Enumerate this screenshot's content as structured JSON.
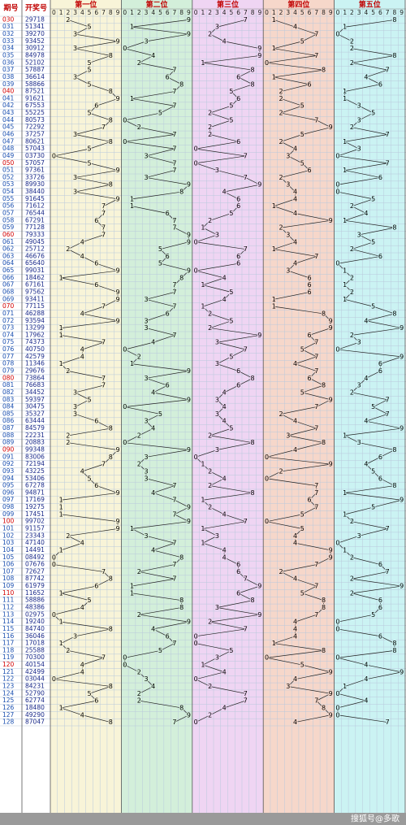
{
  "header": {
    "period": "期号",
    "number": "开奖号",
    "positions": [
      "第一位",
      "第二位",
      "第三位",
      "第四位",
      "第五位"
    ],
    "digits": [
      0,
      1,
      2,
      3,
      4,
      5,
      6,
      7,
      8,
      9
    ]
  },
  "periods": [
    "030",
    "031",
    "032",
    "033",
    "034",
    "035",
    "036",
    "037",
    "038",
    "039",
    "040",
    "041",
    "042",
    "043",
    "044",
    "045",
    "046",
    "047",
    "048",
    "049",
    "050",
    "051",
    "052",
    "053",
    "054",
    "055",
    "056",
    "057",
    "058",
    "059",
    "060",
    "061",
    "062",
    "063",
    "064",
    "065",
    "066",
    "067",
    "068",
    "069",
    "070",
    "071",
    "072",
    "073",
    "074",
    "075",
    "076",
    "077",
    "078",
    "079",
    "080",
    "081",
    "082",
    "083",
    "084",
    "085",
    "086",
    "087",
    "088",
    "089",
    "090",
    "091",
    "092",
    "093",
    "094",
    "095",
    "096",
    "097",
    "098",
    "099",
    "100",
    "101",
    "102",
    "103",
    "104",
    "105",
    "106",
    "107",
    "108",
    "109",
    "110",
    "111",
    "112",
    "113",
    "114",
    "115",
    "116",
    "117",
    "118",
    "119",
    "120",
    "121",
    "122",
    "123",
    "124",
    "125",
    "126",
    "127",
    "128"
  ],
  "draws": [
    [
      2,
      9,
      7,
      1,
      8
    ],
    [
      5,
      1,
      3,
      4,
      1
    ],
    [
      3,
      9,
      2,
      7,
      0
    ],
    [
      9,
      3,
      4,
      5,
      2
    ],
    [
      3,
      0,
      9,
      1,
      2
    ],
    [
      8,
      4,
      9,
      7,
      8
    ],
    [
      5,
      2,
      1,
      0,
      2
    ],
    [
      5,
      7,
      8,
      8,
      7
    ],
    [
      3,
      6,
      6,
      1,
      4
    ],
    [
      5,
      8,
      8,
      6,
      6
    ],
    [
      8,
      7,
      5,
      2,
      1
    ],
    [
      9,
      1,
      6,
      2,
      1
    ],
    [
      6,
      7,
      5,
      5,
      3
    ],
    [
      5,
      5,
      2,
      2,
      5
    ],
    [
      8,
      0,
      5,
      7,
      3
    ],
    [
      7,
      2,
      2,
      9,
      2
    ],
    [
      3,
      7,
      2,
      5,
      7
    ],
    [
      8,
      0,
      6,
      2,
      1
    ],
    [
      5,
      7,
      0,
      4,
      3
    ],
    [
      0,
      3,
      7,
      3,
      0
    ],
    [
      5,
      7,
      0,
      5,
      7
    ],
    [
      9,
      7,
      3,
      6,
      1
    ],
    [
      3,
      3,
      7,
      2,
      6
    ],
    [
      8,
      9,
      9,
      3,
      0
    ],
    [
      3,
      8,
      4,
      4,
      0
    ],
    [
      9,
      1,
      6,
      4,
      5
    ],
    [
      7,
      1,
      6,
      1,
      2
    ],
    [
      7,
      6,
      5,
      4,
      4
    ],
    [
      6,
      7,
      2,
      9,
      1
    ],
    [
      7,
      7,
      1,
      2,
      8
    ],
    [
      7,
      9,
      3,
      3,
      3
    ],
    [
      4,
      9,
      0,
      4,
      5
    ],
    [
      2,
      5,
      7,
      1,
      2
    ],
    [
      4,
      6,
      6,
      7,
      6
    ],
    [
      6,
      5,
      6,
      4,
      0
    ],
    [
      9,
      9,
      0,
      3,
      1
    ],
    [
      1,
      8,
      4,
      6,
      2
    ],
    [
      6,
      7,
      1,
      6,
      1
    ],
    [
      9,
      7,
      5,
      6,
      2
    ],
    [
      9,
      3,
      4,
      1,
      1
    ],
    [
      7,
      7,
      1,
      1,
      5
    ],
    [
      4,
      6,
      2,
      8,
      8
    ],
    [
      9,
      3,
      5,
      9,
      4
    ],
    [
      1,
      3,
      2,
      9,
      9
    ],
    [
      1,
      7,
      9,
      6,
      2
    ],
    [
      7,
      4,
      3,
      7,
      3
    ],
    [
      4,
      0,
      7,
      5,
      0
    ],
    [
      4,
      2,
      5,
      7,
      9
    ],
    [
      1,
      1,
      3,
      4,
      6
    ],
    [
      2,
      9,
      6,
      7,
      6
    ],
    [
      7,
      3,
      8,
      6,
      4
    ],
    [
      7,
      6,
      6,
      8,
      3
    ],
    [
      3,
      4,
      4,
      5,
      2
    ],
    [
      5,
      9,
      3,
      9,
      7
    ],
    [
      3,
      0,
      4,
      7,
      5
    ],
    [
      3,
      5,
      3,
      2,
      7
    ],
    [
      6,
      3,
      4,
      4,
      4
    ],
    [
      8,
      4,
      5,
      7,
      9
    ],
    [
      2,
      2,
      2,
      3,
      1
    ],
    [
      2,
      0,
      8,
      8,
      3
    ],
    [
      9,
      9,
      3,
      4,
      8
    ],
    [
      8,
      3,
      0,
      0,
      6
    ],
    [
      7,
      2,
      1,
      9,
      4
    ],
    [
      4,
      3,
      2,
      2,
      5
    ],
    [
      5,
      3,
      4,
      0,
      6
    ],
    [
      6,
      7,
      2,
      7,
      8
    ],
    [
      9,
      4,
      8,
      7,
      1
    ],
    [
      1,
      7,
      1,
      6,
      9
    ],
    [
      1,
      9,
      2,
      7,
      5
    ],
    [
      1,
      7,
      4,
      5,
      1
    ],
    [
      9,
      9,
      7,
      0,
      2
    ],
    [
      9,
      1,
      1,
      5,
      7
    ],
    [
      2,
      3,
      3,
      4,
      3
    ],
    [
      4,
      7,
      1,
      4,
      0
    ],
    [
      1,
      4,
      4,
      9,
      1
    ],
    [
      0,
      8,
      4,
      9,
      2
    ],
    [
      0,
      7,
      6,
      7,
      6
    ],
    [
      7,
      2,
      6,
      2,
      7
    ],
    [
      8,
      7,
      7,
      4,
      2
    ],
    [
      6,
      1,
      9,
      7,
      9
    ],
    [
      1,
      1,
      6,
      5,
      2
    ],
    [
      5,
      8,
      8,
      8,
      6
    ],
    [
      4,
      8,
      3,
      8,
      6
    ],
    [
      0,
      2,
      9,
      7,
      5
    ],
    [
      1,
      9,
      2,
      4,
      0
    ],
    [
      8,
      4,
      7,
      4,
      0
    ],
    [
      3,
      6,
      0,
      4,
      6
    ],
    [
      1,
      7,
      0,
      1,
      8
    ],
    [
      2,
      5,
      5,
      8,
      8
    ],
    [
      7,
      0,
      3,
      0,
      0
    ],
    [
      4,
      0,
      1,
      5,
      4
    ],
    [
      4,
      2,
      4,
      9,
      9
    ],
    [
      0,
      3,
      0,
      4,
      4
    ],
    [
      8,
      4,
      2,
      3,
      1
    ],
    [
      5,
      2,
      7,
      9,
      0
    ],
    [
      6,
      2,
      7,
      7,
      4
    ],
    [
      1,
      8,
      4,
      8,
      0
    ],
    [
      4,
      9,
      2,
      9,
      0
    ],
    [
      8,
      7,
      0,
      4,
      7
    ]
  ],
  "footer": "搜狐号@多歌"
}
